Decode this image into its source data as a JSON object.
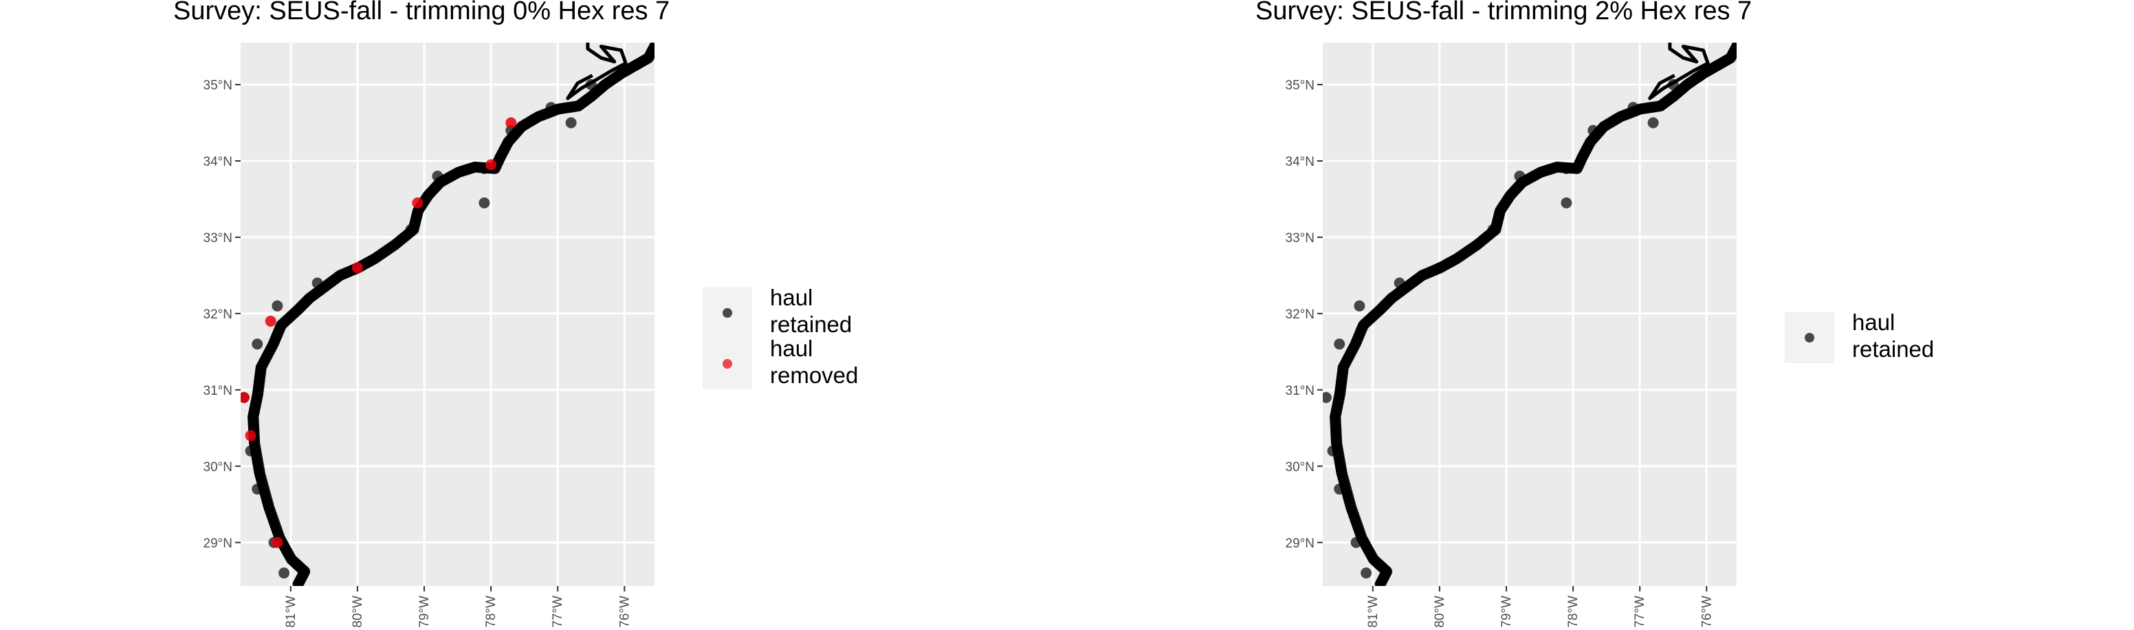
{
  "panels": [
    {
      "title": "Survey: SEUS-fall - trimming 0% Hex res 7",
      "legend": [
        "haul retained",
        "haul removed"
      ]
    },
    {
      "title": "Survey: SEUS-fall - trimming 2% Hex res 7",
      "legend": [
        "haul retained"
      ]
    }
  ],
  "colors": {
    "panel_bg": "#EBEBEB",
    "grid": "#FFFFFF",
    "coast": "#000000",
    "haul_retained": "#000000",
    "haul_removed": "#E8000B"
  },
  "chart_data": [
    {
      "type": "scatter",
      "title": "Survey: SEUS-fall - trimming 0% Hex res 7",
      "xlim": [
        -81.75,
        -75.55
      ],
      "ylim": [
        28.43,
        35.55
      ],
      "x_ticks": [
        -81,
        -80,
        -79,
        -78,
        -77,
        -76
      ],
      "x_tick_labels": [
        "81°W",
        "80°W",
        "79°W",
        "78°W",
        "77°W",
        "76°W"
      ],
      "y_ticks": [
        29,
        30,
        31,
        32,
        33,
        34,
        35
      ],
      "y_tick_labels": [
        "29°N",
        "30°N",
        "31°N",
        "32°N",
        "33°N",
        "34°N",
        "35°N"
      ],
      "grid": true,
      "legend_position": "right",
      "series": [
        {
          "name": "haul retained",
          "points": [
            [
              -81.1,
              28.6
            ],
            [
              -81.25,
              29.0
            ],
            [
              -81.5,
              29.7
            ],
            [
              -81.6,
              30.2
            ],
            [
              -81.7,
              30.9
            ],
            [
              -81.5,
              31.6
            ],
            [
              -81.2,
              32.1
            ],
            [
              -80.6,
              32.4
            ],
            [
              -80.0,
              32.6
            ],
            [
              -79.2,
              33.1
            ],
            [
              -78.8,
              33.8
            ],
            [
              -78.1,
              33.9
            ],
            [
              -77.7,
              34.4
            ],
            [
              -77.1,
              34.7
            ],
            [
              -76.5,
              35.0
            ],
            [
              -76.8,
              34.5
            ],
            [
              -78.1,
              33.45
            ],
            [
              -77.35,
              34.55
            ]
          ]
        },
        {
          "name": "haul removed",
          "points": [
            [
              -81.2,
              29.0
            ],
            [
              -81.6,
              30.4
            ],
            [
              -81.7,
              30.9
            ],
            [
              -81.3,
              31.9
            ],
            [
              -80.0,
              32.6
            ],
            [
              -79.1,
              33.45
            ],
            [
              -78.0,
              33.95
            ],
            [
              -77.7,
              34.5
            ]
          ]
        }
      ]
    },
    {
      "type": "scatter",
      "title": "Survey: SEUS-fall - trimming 2% Hex res 7",
      "xlim": [
        -81.75,
        -75.55
      ],
      "ylim": [
        28.43,
        35.55
      ],
      "x_ticks": [
        -81,
        -80,
        -79,
        -78,
        -77,
        -76
      ],
      "x_tick_labels": [
        "81°W",
        "80°W",
        "79°W",
        "78°W",
        "77°W",
        "76°W"
      ],
      "y_ticks": [
        29,
        30,
        31,
        32,
        33,
        34,
        35
      ],
      "y_tick_labels": [
        "29°N",
        "30°N",
        "31°N",
        "32°N",
        "33°N",
        "34°N",
        "35°N"
      ],
      "grid": true,
      "legend_position": "right",
      "series": [
        {
          "name": "haul retained",
          "points": [
            [
              -81.1,
              28.6
            ],
            [
              -81.25,
              29.0
            ],
            [
              -81.5,
              29.7
            ],
            [
              -81.6,
              30.2
            ],
            [
              -81.7,
              30.9
            ],
            [
              -81.5,
              31.6
            ],
            [
              -81.2,
              32.1
            ],
            [
              -80.6,
              32.4
            ],
            [
              -80.0,
              32.6
            ],
            [
              -79.2,
              33.1
            ],
            [
              -78.8,
              33.8
            ],
            [
              -78.1,
              33.9
            ],
            [
              -77.7,
              34.4
            ],
            [
              -77.1,
              34.7
            ],
            [
              -76.5,
              35.0
            ],
            [
              -76.8,
              34.5
            ],
            [
              -78.1,
              33.45
            ],
            [
              -77.35,
              34.55
            ]
          ]
        }
      ]
    }
  ]
}
